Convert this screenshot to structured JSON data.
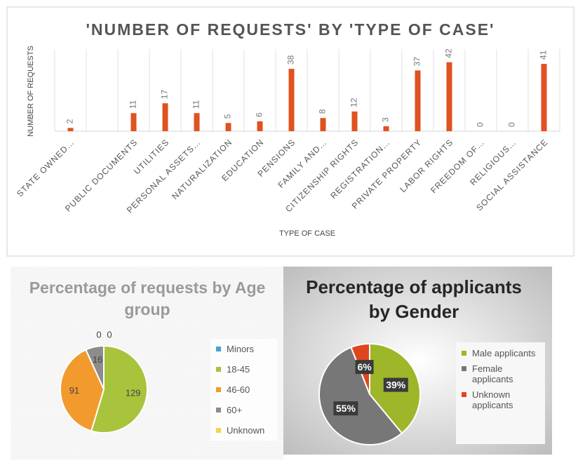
{
  "chart_data": [
    {
      "type": "bar",
      "title": "'NUMBER OF REQUESTS' BY 'TYPE OF CASE'",
      "y_label": "NUMBER OF REQUESTS",
      "x_label": "TYPE OF CASE",
      "categories": [
        "STATE OWNED…",
        null,
        "PUBLIC DOCUMENTS",
        "UTILITIES",
        "PERSONAL ASSETS…",
        "NATURALIZATION",
        "EDUCATION",
        "PENSIONS",
        "FAMILY AND…",
        "CITIZENSHIP RIGHTS",
        "REGISTRATION…",
        "PRIVATE PROPERTY",
        "LABOR RIGHTS",
        "FREEDOM OF…",
        "RELIGIOUS…",
        "SOCIAL ASSISTANCE"
      ],
      "values": [
        2,
        null,
        11,
        17,
        11,
        5,
        6,
        38,
        8,
        12,
        3,
        37,
        42,
        0,
        0,
        41
      ],
      "color": "#e0521f",
      "ylim": [
        0,
        50
      ]
    },
    {
      "type": "pie",
      "title": "Percentage of requests by Age group",
      "categories": [
        "Minors",
        "18-45",
        "46-60",
        "60+",
        "Unknown"
      ],
      "values": [
        0,
        129,
        91,
        16,
        0
      ],
      "colors": [
        "#4a9fd0",
        "#a7c43c",
        "#f29a2e",
        "#8c8c8c",
        "#f3d34a"
      ],
      "legend": "right"
    },
    {
      "type": "pie",
      "title": "Percentage of applicants by Gender",
      "categories": [
        "Male applicants",
        "Female applicants",
        "Unknown applicants"
      ],
      "values": [
        39,
        55,
        6
      ],
      "value_labels": [
        "39%",
        "55%",
        "6%"
      ],
      "colors": [
        "#9db62a",
        "#777777",
        "#e0461e"
      ],
      "legend": "right"
    }
  ]
}
